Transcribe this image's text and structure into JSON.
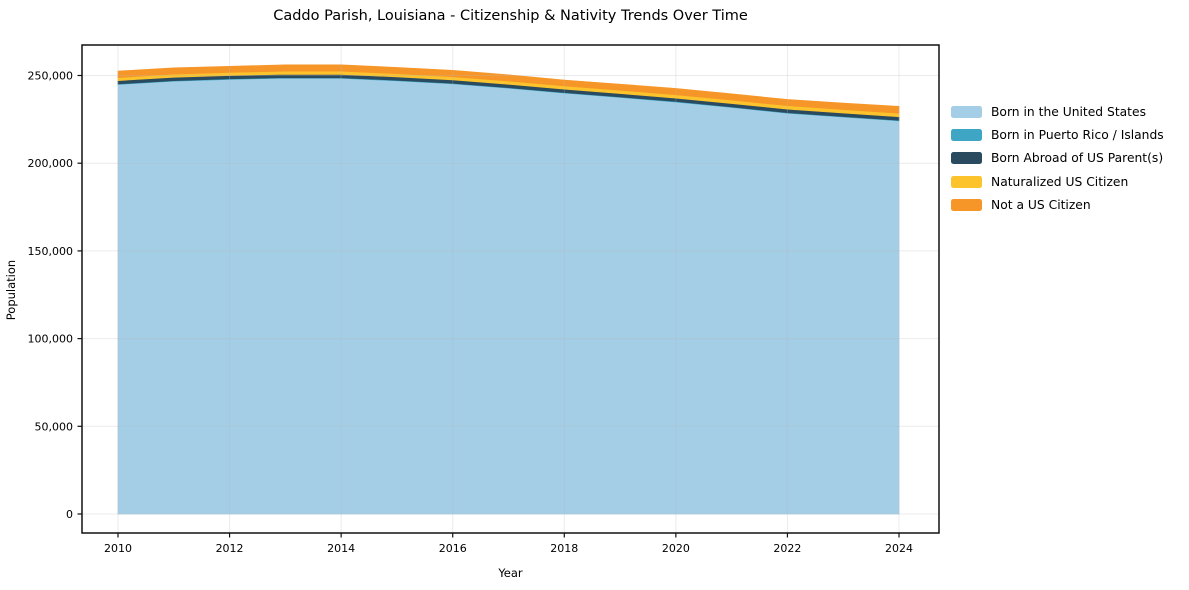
{
  "title": "Caddo Parish, Louisiana - Citizenship & Nativity Trends Over Time",
  "chart_data": {
    "type": "area",
    "stacked": true,
    "title": "Caddo Parish, Louisiana - Citizenship & Nativity Trends Over Time",
    "xlabel": "Year",
    "ylabel": "Population",
    "x": [
      2010,
      2011,
      2012,
      2013,
      2014,
      2015,
      2016,
      2017,
      2018,
      2019,
      2020,
      2021,
      2022,
      2023,
      2024
    ],
    "xtick_labels": [
      "2010",
      "2012",
      "2014",
      "2016",
      "2018",
      "2020",
      "2022",
      "2024"
    ],
    "xticks": [
      2010,
      2012,
      2014,
      2016,
      2018,
      2020,
      2022,
      2024
    ],
    "yticks": [
      0,
      50000,
      100000,
      150000,
      200000,
      250000
    ],
    "ytick_labels": [
      "0",
      "50,000",
      "100,000",
      "150,000",
      "200,000",
      "250,000"
    ],
    "ylim": [
      -12000,
      268000
    ],
    "xlim": [
      2009.35,
      2024.72
    ],
    "grid": true,
    "legend_position": "right-outside",
    "colors": {
      "background": "#ffffff",
      "spine": "#111111",
      "gridline": "#b7b7b7",
      "tick_text": "#000000"
    },
    "series": [
      {
        "name": "Born in the United States",
        "color": "#a3cee6",
        "values": [
          244900,
          246800,
          247800,
          248500,
          248400,
          247000,
          245300,
          242800,
          240000,
          237500,
          234900,
          231800,
          228500,
          226300,
          224200
        ]
      },
      {
        "name": "Born in Puerto Rico / Islands",
        "color": "#3fa5c5",
        "values": [
          300,
          300,
          300,
          300,
          300,
          300,
          300,
          300,
          300,
          300,
          300,
          300,
          300,
          300,
          300
        ]
      },
      {
        "name": "Born Abroad of US Parent(s)",
        "color": "#2a4a5f",
        "values": [
          1900,
          1900,
          1900,
          1900,
          1900,
          1900,
          1900,
          1900,
          1900,
          1900,
          1900,
          1950,
          2000,
          2000,
          2000
        ]
      },
      {
        "name": "Naturalized US Citizen",
        "color": "#fcc32d",
        "values": [
          1700,
          1750,
          1750,
          1800,
          1850,
          1850,
          1800,
          1850,
          1900,
          1900,
          1900,
          1950,
          2000,
          2000,
          2000
        ]
      },
      {
        "name": "Not a US Citizen",
        "color": "#f79628",
        "values": [
          3700,
          3600,
          3500,
          3550,
          3600,
          3550,
          3600,
          3500,
          3300,
          3450,
          3600,
          3550,
          3500,
          3650,
          3900
        ]
      }
    ]
  }
}
